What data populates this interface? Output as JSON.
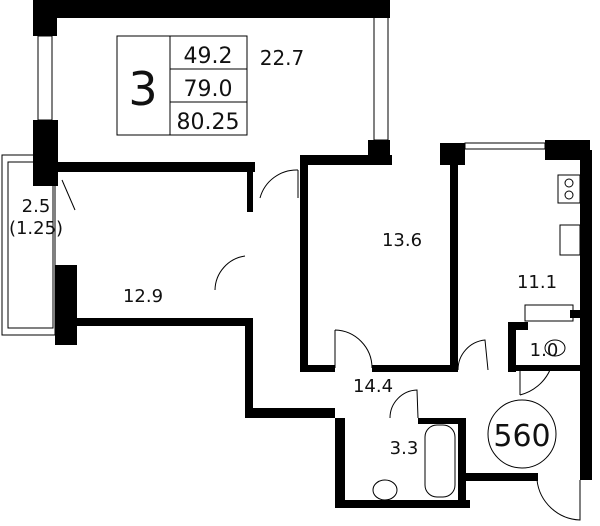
{
  "summary": {
    "rooms_count": "3",
    "living_area": "49.2",
    "total_area": "79.0",
    "total_area_with_balcony": "80.25"
  },
  "rooms": {
    "living_room": "22.7",
    "balcony": "2.5",
    "balcony_reduced": "(1.25)",
    "bedroom_1": "12.9",
    "bedroom_2": "13.6",
    "kitchen": "11.1",
    "wc": "1.0",
    "hallway": "14.4",
    "bathroom": "3.3"
  },
  "apartment_number": "560",
  "colors": {
    "wall": "#000000",
    "background": "#ffffff"
  }
}
